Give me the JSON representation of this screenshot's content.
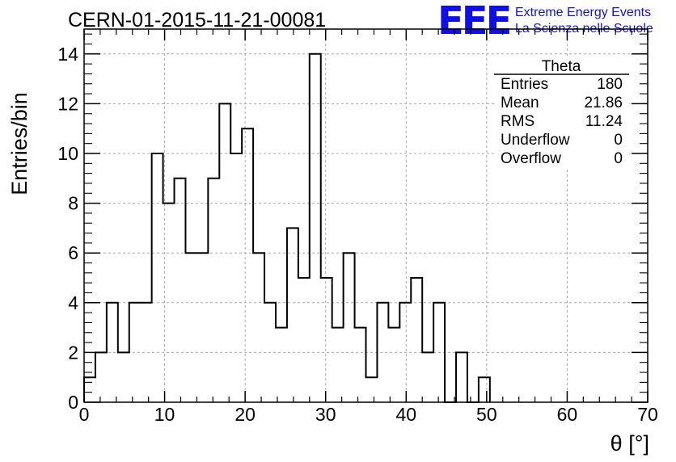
{
  "title": "CERN-01-2015-11-21-00081",
  "logo": {
    "text": "EEE",
    "line1": "Extreme Energy Events",
    "line2": "La Scienza nelle Scuole",
    "color": "#1010e6"
  },
  "stats_box": {
    "name": "Theta",
    "rows": [
      {
        "label": "Entries",
        "value": "180"
      },
      {
        "label": "Mean",
        "value": "21.86"
      },
      {
        "label": "RMS",
        "value": "11.24"
      },
      {
        "label": "Underflow",
        "value": "0"
      },
      {
        "label": "Overflow",
        "value": "0"
      }
    ]
  },
  "chart_data": {
    "type": "bar",
    "histogram": true,
    "title": "CERN-01-2015-11-21-00081",
    "xlabel": "θ [°]",
    "ylabel": "Entries/bin",
    "xlim": [
      0,
      70
    ],
    "ylim": [
      0,
      15
    ],
    "bin_width": 1.4,
    "x": [
      0.7,
      2.1,
      3.5,
      4.9,
      6.3,
      7.7,
      9.1,
      10.5,
      11.9,
      13.3,
      14.7,
      16.1,
      17.5,
      18.9,
      20.3,
      21.7,
      23.1,
      24.5,
      25.9,
      27.3,
      28.7,
      30.1,
      31.5,
      32.9,
      34.3,
      35.7,
      37.1,
      38.5,
      39.9,
      41.3,
      42.7,
      44.1,
      45.5,
      46.9,
      48.3,
      49.7
    ],
    "values": [
      1,
      2,
      4,
      2,
      4,
      4,
      10,
      8,
      9,
      6,
      6,
      9,
      12,
      10,
      11,
      6,
      4,
      3,
      7,
      5,
      14,
      5,
      3,
      6,
      3,
      1,
      4,
      3,
      4,
      5,
      2,
      4,
      0,
      2,
      0,
      1
    ],
    "xticks": [
      "0",
      "10",
      "20",
      "30",
      "40",
      "50",
      "60",
      "70"
    ],
    "xtick_values": [
      0,
      10,
      20,
      30,
      40,
      50,
      60,
      70
    ],
    "yticks": [
      "0",
      "2",
      "4",
      "6",
      "8",
      "10",
      "12",
      "14"
    ],
    "ytick_values": [
      0,
      2,
      4,
      6,
      8,
      10,
      12,
      14
    ],
    "grid": true,
    "legend": "stats box top-right"
  }
}
